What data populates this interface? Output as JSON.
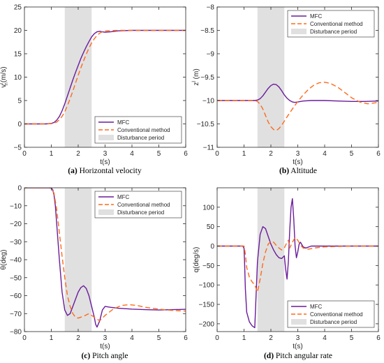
{
  "colors": {
    "mfc": "#6a1b9a",
    "conventional": "#ff6a1a",
    "disturbance": "#e0e0e0",
    "axis": "#262626"
  },
  "chart_data": [
    {
      "id": "a",
      "type": "line",
      "caption_letter": "(a)",
      "caption_text": " Horizontal velocity",
      "xlabel": "t(s)",
      "ylabel": "v_n^l (m/s)",
      "xlim": [
        0,
        6
      ],
      "ylim": [
        -5,
        25
      ],
      "xticks": [
        0,
        1,
        2,
        3,
        4,
        5,
        6
      ],
      "yticks": [
        -5,
        0,
        5,
        10,
        15,
        20,
        25
      ],
      "grid": false,
      "legend_position": "bottom-right",
      "disturbance": [
        1.5,
        2.5
      ],
      "series": [
        {
          "name": "MFC",
          "style": "solid",
          "x": [
            0,
            0.8,
            1.0,
            1.1,
            1.2,
            1.3,
            1.4,
            1.5,
            1.6,
            1.7,
            1.8,
            1.9,
            2.0,
            2.1,
            2.2,
            2.3,
            2.4,
            2.5,
            2.6,
            2.7,
            2.8,
            2.9,
            3.0,
            3.2,
            3.5,
            4.0,
            5.0,
            6.0
          ],
          "y": [
            0,
            0,
            0.1,
            0.3,
            0.8,
            1.6,
            2.8,
            4.3,
            6.0,
            7.7,
            9.4,
            11.0,
            12.5,
            14.0,
            15.3,
            16.5,
            17.6,
            18.6,
            19.3,
            19.7,
            19.8,
            19.7,
            19.6,
            19.7,
            19.9,
            20.0,
            20.0,
            20.0
          ]
        },
        {
          "name": "Conventional method",
          "style": "dashed",
          "x": [
            0,
            0.8,
            1.0,
            1.1,
            1.2,
            1.3,
            1.4,
            1.5,
            1.6,
            1.7,
            1.8,
            1.9,
            2.0,
            2.1,
            2.2,
            2.3,
            2.4,
            2.5,
            2.6,
            2.7,
            2.8,
            2.9,
            3.0,
            3.2,
            3.5,
            4.0,
            5.0,
            6.0
          ],
          "y": [
            0,
            0,
            0.05,
            0.15,
            0.4,
            0.9,
            1.6,
            2.6,
            3.9,
            5.4,
            7.0,
            8.7,
            10.4,
            12.0,
            13.5,
            14.9,
            16.2,
            17.3,
            18.2,
            18.9,
            19.4,
            19.7,
            19.85,
            19.95,
            20.0,
            20.0,
            20.0,
            20.0
          ]
        }
      ]
    },
    {
      "id": "b",
      "type": "line",
      "caption_letter": "(b)",
      "caption_text": " Altitude",
      "xlabel": "t(s)",
      "ylabel": "z^l (m)",
      "xlim": [
        0,
        6
      ],
      "ylim": [
        -11,
        -8
      ],
      "xticks": [
        0,
        1,
        2,
        3,
        4,
        5,
        6
      ],
      "yticks": [
        -11,
        -10.5,
        -10,
        -9.5,
        -9,
        -8.5,
        -8
      ],
      "grid": false,
      "legend_position": "top-right",
      "disturbance": [
        1.5,
        2.5
      ],
      "series": [
        {
          "name": "MFC",
          "style": "solid",
          "x": [
            0,
            1.4,
            1.5,
            1.6,
            1.7,
            1.8,
            1.9,
            2.0,
            2.1,
            2.2,
            2.3,
            2.4,
            2.5,
            2.6,
            2.7,
            2.8,
            2.9,
            3.0,
            3.2,
            3.5,
            4.0,
            4.5,
            5.0,
            5.5,
            6.0
          ],
          "y": [
            -10,
            -10,
            -9.99,
            -9.96,
            -9.9,
            -9.82,
            -9.74,
            -9.68,
            -9.65,
            -9.66,
            -9.71,
            -9.79,
            -9.88,
            -9.95,
            -10.0,
            -10.03,
            -10.04,
            -10.03,
            -10.01,
            -10.0,
            -10.0,
            -10.01,
            -10.02,
            -10.02,
            -10.01
          ]
        },
        {
          "name": "Conventional method",
          "style": "dashed",
          "x": [
            0,
            1.4,
            1.5,
            1.6,
            1.7,
            1.8,
            1.9,
            2.0,
            2.1,
            2.2,
            2.3,
            2.4,
            2.5,
            2.6,
            2.8,
            3.0,
            3.2,
            3.4,
            3.6,
            3.8,
            4.0,
            4.2,
            4.5,
            4.8,
            5.0,
            5.3,
            5.6,
            6.0
          ],
          "y": [
            -10,
            -10,
            -10.02,
            -10.08,
            -10.18,
            -10.32,
            -10.46,
            -10.56,
            -10.62,
            -10.64,
            -10.6,
            -10.53,
            -10.44,
            -10.35,
            -10.18,
            -10.02,
            -9.88,
            -9.76,
            -9.67,
            -9.62,
            -9.61,
            -9.63,
            -9.72,
            -9.85,
            -9.94,
            -10.03,
            -10.07,
            -10.04
          ]
        }
      ]
    },
    {
      "id": "c",
      "type": "line",
      "caption_letter": "(c)",
      "caption_text": " Pitch angle",
      "xlabel": "t(s)",
      "ylabel": "θ(deg)",
      "xlim": [
        0,
        6
      ],
      "ylim": [
        -80,
        0
      ],
      "xticks": [
        0,
        1,
        2,
        3,
        4,
        5,
        6
      ],
      "yticks": [
        -80,
        -70,
        -60,
        -50,
        -40,
        -30,
        -20,
        -10,
        0
      ],
      "grid": false,
      "legend_position": "top-right",
      "disturbance": [
        1.5,
        2.5
      ],
      "series": [
        {
          "name": "MFC",
          "style": "solid",
          "x": [
            0,
            0.9,
            1.0,
            1.05,
            1.1,
            1.15,
            1.2,
            1.3,
            1.4,
            1.5,
            1.6,
            1.7,
            1.8,
            1.9,
            2.0,
            2.1,
            2.2,
            2.3,
            2.4,
            2.5,
            2.6,
            2.65,
            2.7,
            2.8,
            2.9,
            3.0,
            3.2,
            3.5,
            4.0,
            4.5,
            5.0,
            5.5,
            6.0
          ],
          "y": [
            0,
            0,
            -0.2,
            -1,
            -4,
            -10,
            -20,
            -40,
            -58,
            -68,
            -71,
            -70,
            -66,
            -62,
            -58,
            -55.5,
            -54.5,
            -56,
            -60,
            -66,
            -72,
            -76,
            -77.5,
            -74,
            -68,
            -66,
            -66.5,
            -67,
            -67.5,
            -67.8,
            -68,
            -67.8,
            -67.6
          ]
        },
        {
          "name": "Conventional method",
          "style": "dashed",
          "x": [
            0,
            1.0,
            1.1,
            1.2,
            1.3,
            1.4,
            1.5,
            1.6,
            1.7,
            1.8,
            1.9,
            2.0,
            2.2,
            2.4,
            2.6,
            2.8,
            3.0,
            3.3,
            3.6,
            3.9,
            4.2,
            4.5,
            5.0,
            5.5,
            6.0
          ],
          "y": [
            0,
            0,
            -3,
            -12,
            -25,
            -38,
            -50,
            -60,
            -66,
            -70,
            -72,
            -72.5,
            -71.5,
            -70,
            -72,
            -74,
            -71,
            -67.5,
            -65.5,
            -65,
            -65.5,
            -66.5,
            -67.5,
            -68.2,
            -68.6
          ]
        }
      ]
    },
    {
      "id": "d",
      "type": "line",
      "caption_letter": "(d)",
      "caption_text": " Pitch angular rate",
      "xlabel": "t(s)",
      "ylabel": "q(deg/s)",
      "xlim": [
        0,
        6
      ],
      "ylim": [
        -220,
        150
      ],
      "xticks": [
        0,
        1,
        2,
        3,
        4,
        5,
        6
      ],
      "yticks": [
        -200,
        -150,
        -100,
        -50,
        0,
        50,
        100
      ],
      "grid": false,
      "legend_position": "bottom-right",
      "disturbance": [
        1.5,
        2.5
      ],
      "series": [
        {
          "name": "MFC",
          "style": "solid",
          "x": [
            0,
            0.95,
            1.0,
            1.02,
            1.05,
            1.1,
            1.2,
            1.3,
            1.4,
            1.5,
            1.6,
            1.7,
            1.8,
            1.9,
            2.0,
            2.1,
            2.2,
            2.3,
            2.4,
            2.5,
            2.55,
            2.6,
            2.65,
            2.7,
            2.75,
            2.8,
            2.85,
            2.9,
            2.95,
            3.0,
            3.05,
            3.1,
            3.2,
            3.3,
            3.5,
            4.0,
            5.0,
            6.0
          ],
          "y": [
            0,
            0,
            -5,
            -40,
            -110,
            -170,
            -195,
            -205,
            -210,
            -40,
            30,
            50,
            45,
            25,
            5,
            -10,
            -22,
            -30,
            -32,
            -25,
            -60,
            -85,
            -40,
            40,
            100,
            122,
            70,
            0,
            -30,
            -15,
            5,
            10,
            -2,
            -5,
            0,
            0,
            0,
            0
          ]
        },
        {
          "name": "Conventional method",
          "style": "dashed",
          "x": [
            0,
            1.0,
            1.05,
            1.1,
            1.2,
            1.3,
            1.4,
            1.5,
            1.6,
            1.7,
            1.8,
            1.9,
            2.0,
            2.1,
            2.2,
            2.3,
            2.4,
            2.5,
            2.6,
            2.65,
            2.7,
            2.8,
            2.9,
            3.0,
            3.1,
            3.2,
            3.4,
            3.6,
            4.0,
            5.0,
            6.0
          ],
          "y": [
            0,
            0,
            -20,
            -55,
            -80,
            -92,
            -100,
            -118,
            -85,
            -45,
            -15,
            5,
            12,
            10,
            2,
            -5,
            -10,
            -5,
            10,
            15,
            -5,
            10,
            22,
            15,
            3,
            -5,
            -8,
            -5,
            -2,
            0,
            0
          ]
        }
      ]
    }
  ]
}
